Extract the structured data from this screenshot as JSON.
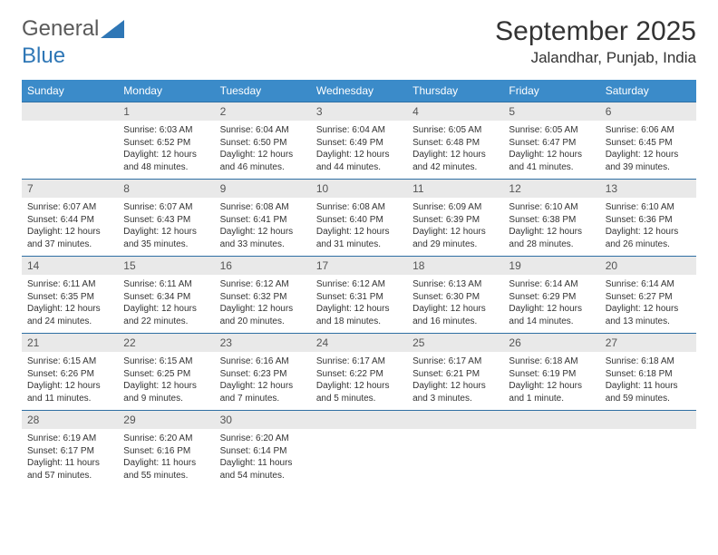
{
  "brand": {
    "text1": "General",
    "text2": "Blue"
  },
  "header": {
    "title": "September 2025",
    "location": "Jalandhar, Punjab, India"
  },
  "colors": {
    "header_bg": "#3b8bc9",
    "header_text": "#ffffff",
    "row_border": "#2f6fa3",
    "daynum_bg": "#e9e9e9",
    "body_text": "#333333",
    "brand_text": "#5a5a5a",
    "brand_blue": "#2f77b6"
  },
  "dow": [
    "Sunday",
    "Monday",
    "Tuesday",
    "Wednesday",
    "Thursday",
    "Friday",
    "Saturday"
  ],
  "weeks": [
    [
      {
        "day": "",
        "sunrise": "",
        "sunset": "",
        "daylight": ""
      },
      {
        "day": "1",
        "sunrise": "Sunrise: 6:03 AM",
        "sunset": "Sunset: 6:52 PM",
        "daylight": "Daylight: 12 hours and 48 minutes."
      },
      {
        "day": "2",
        "sunrise": "Sunrise: 6:04 AM",
        "sunset": "Sunset: 6:50 PM",
        "daylight": "Daylight: 12 hours and 46 minutes."
      },
      {
        "day": "3",
        "sunrise": "Sunrise: 6:04 AM",
        "sunset": "Sunset: 6:49 PM",
        "daylight": "Daylight: 12 hours and 44 minutes."
      },
      {
        "day": "4",
        "sunrise": "Sunrise: 6:05 AM",
        "sunset": "Sunset: 6:48 PM",
        "daylight": "Daylight: 12 hours and 42 minutes."
      },
      {
        "day": "5",
        "sunrise": "Sunrise: 6:05 AM",
        "sunset": "Sunset: 6:47 PM",
        "daylight": "Daylight: 12 hours and 41 minutes."
      },
      {
        "day": "6",
        "sunrise": "Sunrise: 6:06 AM",
        "sunset": "Sunset: 6:45 PM",
        "daylight": "Daylight: 12 hours and 39 minutes."
      }
    ],
    [
      {
        "day": "7",
        "sunrise": "Sunrise: 6:07 AM",
        "sunset": "Sunset: 6:44 PM",
        "daylight": "Daylight: 12 hours and 37 minutes."
      },
      {
        "day": "8",
        "sunrise": "Sunrise: 6:07 AM",
        "sunset": "Sunset: 6:43 PM",
        "daylight": "Daylight: 12 hours and 35 minutes."
      },
      {
        "day": "9",
        "sunrise": "Sunrise: 6:08 AM",
        "sunset": "Sunset: 6:41 PM",
        "daylight": "Daylight: 12 hours and 33 minutes."
      },
      {
        "day": "10",
        "sunrise": "Sunrise: 6:08 AM",
        "sunset": "Sunset: 6:40 PM",
        "daylight": "Daylight: 12 hours and 31 minutes."
      },
      {
        "day": "11",
        "sunrise": "Sunrise: 6:09 AM",
        "sunset": "Sunset: 6:39 PM",
        "daylight": "Daylight: 12 hours and 29 minutes."
      },
      {
        "day": "12",
        "sunrise": "Sunrise: 6:10 AM",
        "sunset": "Sunset: 6:38 PM",
        "daylight": "Daylight: 12 hours and 28 minutes."
      },
      {
        "day": "13",
        "sunrise": "Sunrise: 6:10 AM",
        "sunset": "Sunset: 6:36 PM",
        "daylight": "Daylight: 12 hours and 26 minutes."
      }
    ],
    [
      {
        "day": "14",
        "sunrise": "Sunrise: 6:11 AM",
        "sunset": "Sunset: 6:35 PM",
        "daylight": "Daylight: 12 hours and 24 minutes."
      },
      {
        "day": "15",
        "sunrise": "Sunrise: 6:11 AM",
        "sunset": "Sunset: 6:34 PM",
        "daylight": "Daylight: 12 hours and 22 minutes."
      },
      {
        "day": "16",
        "sunrise": "Sunrise: 6:12 AM",
        "sunset": "Sunset: 6:32 PM",
        "daylight": "Daylight: 12 hours and 20 minutes."
      },
      {
        "day": "17",
        "sunrise": "Sunrise: 6:12 AM",
        "sunset": "Sunset: 6:31 PM",
        "daylight": "Daylight: 12 hours and 18 minutes."
      },
      {
        "day": "18",
        "sunrise": "Sunrise: 6:13 AM",
        "sunset": "Sunset: 6:30 PM",
        "daylight": "Daylight: 12 hours and 16 minutes."
      },
      {
        "day": "19",
        "sunrise": "Sunrise: 6:14 AM",
        "sunset": "Sunset: 6:29 PM",
        "daylight": "Daylight: 12 hours and 14 minutes."
      },
      {
        "day": "20",
        "sunrise": "Sunrise: 6:14 AM",
        "sunset": "Sunset: 6:27 PM",
        "daylight": "Daylight: 12 hours and 13 minutes."
      }
    ],
    [
      {
        "day": "21",
        "sunrise": "Sunrise: 6:15 AM",
        "sunset": "Sunset: 6:26 PM",
        "daylight": "Daylight: 12 hours and 11 minutes."
      },
      {
        "day": "22",
        "sunrise": "Sunrise: 6:15 AM",
        "sunset": "Sunset: 6:25 PM",
        "daylight": "Daylight: 12 hours and 9 minutes."
      },
      {
        "day": "23",
        "sunrise": "Sunrise: 6:16 AM",
        "sunset": "Sunset: 6:23 PM",
        "daylight": "Daylight: 12 hours and 7 minutes."
      },
      {
        "day": "24",
        "sunrise": "Sunrise: 6:17 AM",
        "sunset": "Sunset: 6:22 PM",
        "daylight": "Daylight: 12 hours and 5 minutes."
      },
      {
        "day": "25",
        "sunrise": "Sunrise: 6:17 AM",
        "sunset": "Sunset: 6:21 PM",
        "daylight": "Daylight: 12 hours and 3 minutes."
      },
      {
        "day": "26",
        "sunrise": "Sunrise: 6:18 AM",
        "sunset": "Sunset: 6:19 PM",
        "daylight": "Daylight: 12 hours and 1 minute."
      },
      {
        "day": "27",
        "sunrise": "Sunrise: 6:18 AM",
        "sunset": "Sunset: 6:18 PM",
        "daylight": "Daylight: 11 hours and 59 minutes."
      }
    ],
    [
      {
        "day": "28",
        "sunrise": "Sunrise: 6:19 AM",
        "sunset": "Sunset: 6:17 PM",
        "daylight": "Daylight: 11 hours and 57 minutes."
      },
      {
        "day": "29",
        "sunrise": "Sunrise: 6:20 AM",
        "sunset": "Sunset: 6:16 PM",
        "daylight": "Daylight: 11 hours and 55 minutes."
      },
      {
        "day": "30",
        "sunrise": "Sunrise: 6:20 AM",
        "sunset": "Sunset: 6:14 PM",
        "daylight": "Daylight: 11 hours and 54 minutes."
      },
      {
        "day": "",
        "sunrise": "",
        "sunset": "",
        "daylight": ""
      },
      {
        "day": "",
        "sunrise": "",
        "sunset": "",
        "daylight": ""
      },
      {
        "day": "",
        "sunrise": "",
        "sunset": "",
        "daylight": ""
      },
      {
        "day": "",
        "sunrise": "",
        "sunset": "",
        "daylight": ""
      }
    ]
  ]
}
